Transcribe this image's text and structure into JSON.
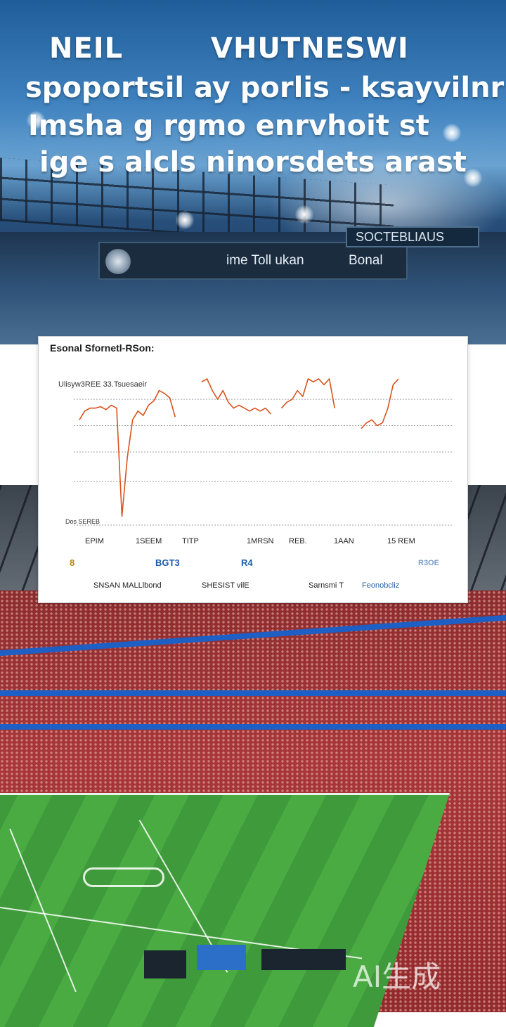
{
  "banner": {
    "headline": [
      "NEIL",
      "VHUTNESWI",
      "spoportsil ay porlis - ksayvilnr",
      "Imsha g rgmo enrvhoit st",
      "ige s alcls ninorsdets arast"
    ],
    "scoreboard_text": "ime Toll ukan",
    "scoreboard_text_2": "Bonal",
    "side_sign": "SOCTEBLIAUS"
  },
  "chart": {
    "title": "Esonal Sfornetl-RSon:",
    "subtitle": "Ulisyw3REE 33.Tsuesaeir",
    "line_color": "#d9531e",
    "legend_marks": [
      "8",
      "BGT3",
      "R4",
      "R3OE"
    ],
    "legend_labels": [
      "SNSAN MALLlbond",
      "SHESIST vilE",
      "Sarnsmi T",
      "Feonobcliz"
    ]
  },
  "chart_data": {
    "type": "line",
    "title": "Esonal Sfornetl-RSon:",
    "subtitle": "Ulisyw3REE 33.Tsuesaeir",
    "xlabel": "",
    "ylabel": "",
    "x_ticks": [
      "EPIM",
      "1SEEM",
      "TITP",
      "1MRSN",
      "REB.",
      "1AAN",
      "15 REM"
    ],
    "y_tick_labels": [
      "",
      "",
      "",
      "",
      "Dos SEREB"
    ],
    "y_min": 0,
    "y_max": 100,
    "grid": true,
    "legend_position": "bottom",
    "series": [
      {
        "values": [
          72,
          78,
          80,
          80,
          81,
          79,
          82,
          80,
          6,
          46,
          72,
          78,
          75,
          82,
          85,
          92,
          90,
          87,
          74,
          null,
          null,
          null,
          null,
          98,
          110,
          92,
          86,
          92,
          84,
          80,
          82,
          80,
          78,
          80,
          78,
          80,
          76,
          null,
          80,
          84,
          86,
          92,
          88,
          104,
          98,
          108,
          96,
          100,
          80,
          null,
          null,
          null,
          null,
          66,
          70,
          72,
          68,
          70,
          80,
          96,
          104
        ]
      }
    ]
  },
  "footer": {
    "watermark": "AI生成"
  }
}
